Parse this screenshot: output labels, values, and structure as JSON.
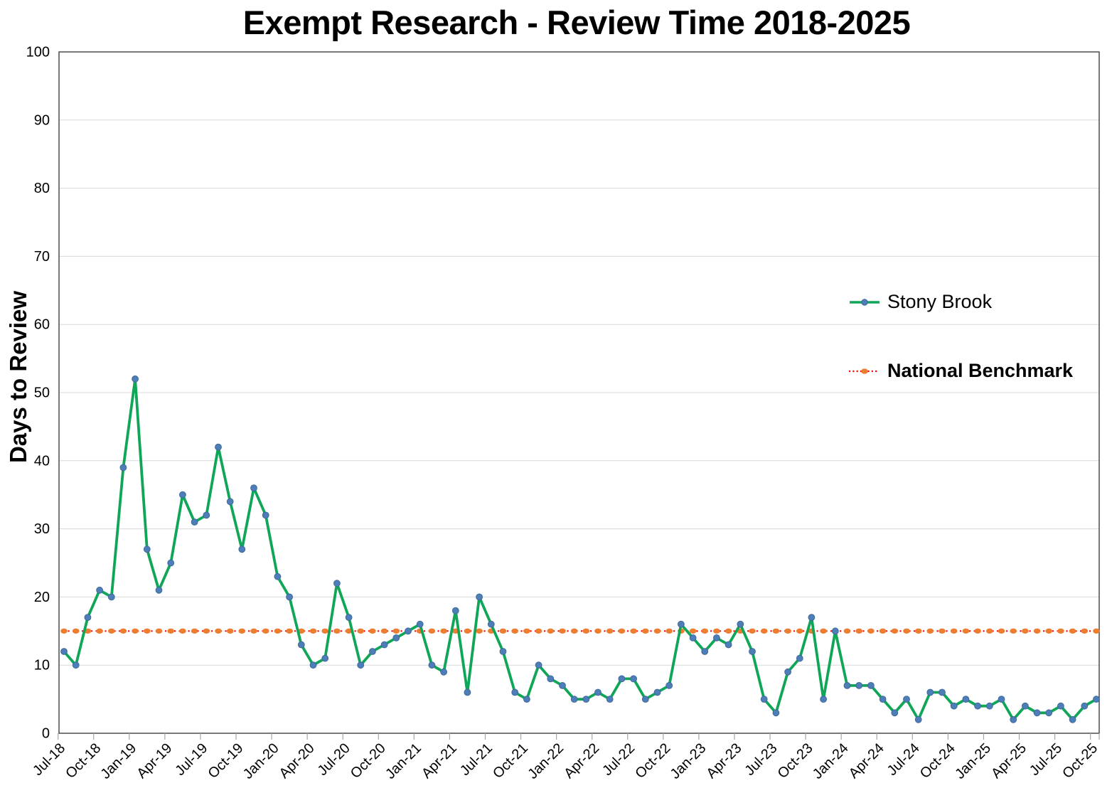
{
  "title": "Exempt Research - Review Time 2018-2025",
  "chart_data": {
    "type": "line",
    "title": "Exempt Research - Review Time 2018-2025",
    "xlabel": "",
    "ylabel": "Days to Review",
    "ylim": [
      0,
      100
    ],
    "y_ticks": [
      0,
      10,
      20,
      30,
      40,
      50,
      60,
      70,
      80,
      90,
      100
    ],
    "grid": "horizontal",
    "legend_position": "inside-right",
    "x": [
      "Jul-18",
      "Aug-18",
      "Sep-18",
      "Oct-18",
      "Nov-18",
      "Dec-18",
      "Jan-19",
      "Feb-19",
      "Mar-19",
      "Apr-19",
      "May-19",
      "Jun-19",
      "Jul-19",
      "Aug-19",
      "Sep-19",
      "Oct-19",
      "Nov-19",
      "Dec-19",
      "Jan-20",
      "Feb-20",
      "Mar-20",
      "Apr-20",
      "May-20",
      "Jun-20",
      "Jul-20",
      "Aug-20",
      "Sep-20",
      "Oct-20",
      "Nov-20",
      "Dec-20",
      "Jan-21",
      "Feb-21",
      "Mar-21",
      "Apr-21",
      "May-21",
      "Jun-21",
      "Jul-21",
      "Aug-21",
      "Sep-21",
      "Oct-21",
      "Nov-21",
      "Dec-21",
      "Jan-22",
      "Feb-22",
      "Mar-22",
      "Apr-22",
      "May-22",
      "Jun-22",
      "Jul-22",
      "Aug-22",
      "Sep-22",
      "Oct-22",
      "Nov-22",
      "Dec-22",
      "Jan-23",
      "Feb-23",
      "Mar-23",
      "Apr-23",
      "May-23",
      "Jun-23",
      "Jul-23",
      "Aug-23",
      "Sep-23",
      "Oct-23",
      "Nov-23",
      "Dec-23",
      "Jan-24",
      "Feb-24",
      "Mar-24",
      "Apr-24",
      "May-24",
      "Jun-24",
      "Jul-24",
      "Aug-24",
      "Sep-24",
      "Oct-24",
      "Nov-24",
      "Dec-24",
      "Jan-25",
      "Feb-25",
      "Mar-25",
      "Apr-25",
      "May-25",
      "Jun-25",
      "Jul-25",
      "Aug-25",
      "Sep-25",
      "Oct-25"
    ],
    "x_tick_labels": [
      "Jul-18",
      "Oct-18",
      "Jan-19",
      "Apr-19",
      "Jul-19",
      "Oct-19",
      "Jan-20",
      "Apr-20",
      "Jul-20",
      "Oct-20",
      "Jan-21",
      "Apr-21",
      "Jul-21",
      "Oct-21",
      "Jan-22",
      "Apr-22",
      "Jul-22",
      "Oct-22",
      "Jan-23",
      "Apr-23",
      "Jul-23",
      "Oct-23",
      "Jan-24",
      "Apr-24",
      "Jul-24",
      "Oct-24",
      "Jan-25",
      "Apr-25",
      "Jul-25",
      "Oct-25"
    ],
    "x_tick_step": 3,
    "series": [
      {
        "name": "Stony Brook",
        "line_color": "#10A657",
        "marker_color": "#4D7EB8",
        "marker_border": "#3E699C",
        "values": [
          12,
          10,
          17,
          21,
          20,
          39,
          52,
          27,
          21,
          25,
          35,
          31,
          32,
          42,
          34,
          27,
          36,
          32,
          23,
          20,
          13,
          10,
          11,
          22,
          17,
          10,
          12,
          13,
          14,
          15,
          16,
          10,
          9,
          18,
          6,
          20,
          16,
          12,
          6,
          5,
          10,
          8,
          7,
          5,
          5,
          6,
          5,
          8,
          8,
          5,
          6,
          7,
          16,
          14,
          12,
          14,
          13,
          16,
          12,
          5,
          3,
          9,
          11,
          17,
          5,
          15,
          7,
          7,
          7,
          5,
          3,
          5,
          2,
          6,
          6,
          4,
          5,
          4,
          4,
          5,
          2,
          4,
          3,
          3,
          4,
          2,
          4,
          5
        ]
      },
      {
        "name": "National Benchmark",
        "style": "dotted",
        "line_color": "#FF0000",
        "marker_color": "#ED7D31",
        "value": 15
      }
    ],
    "colors": {
      "gridline": "#D9D9D9",
      "axis": "#404040",
      "tick": "#A6A6A6",
      "text": "#000000"
    }
  }
}
